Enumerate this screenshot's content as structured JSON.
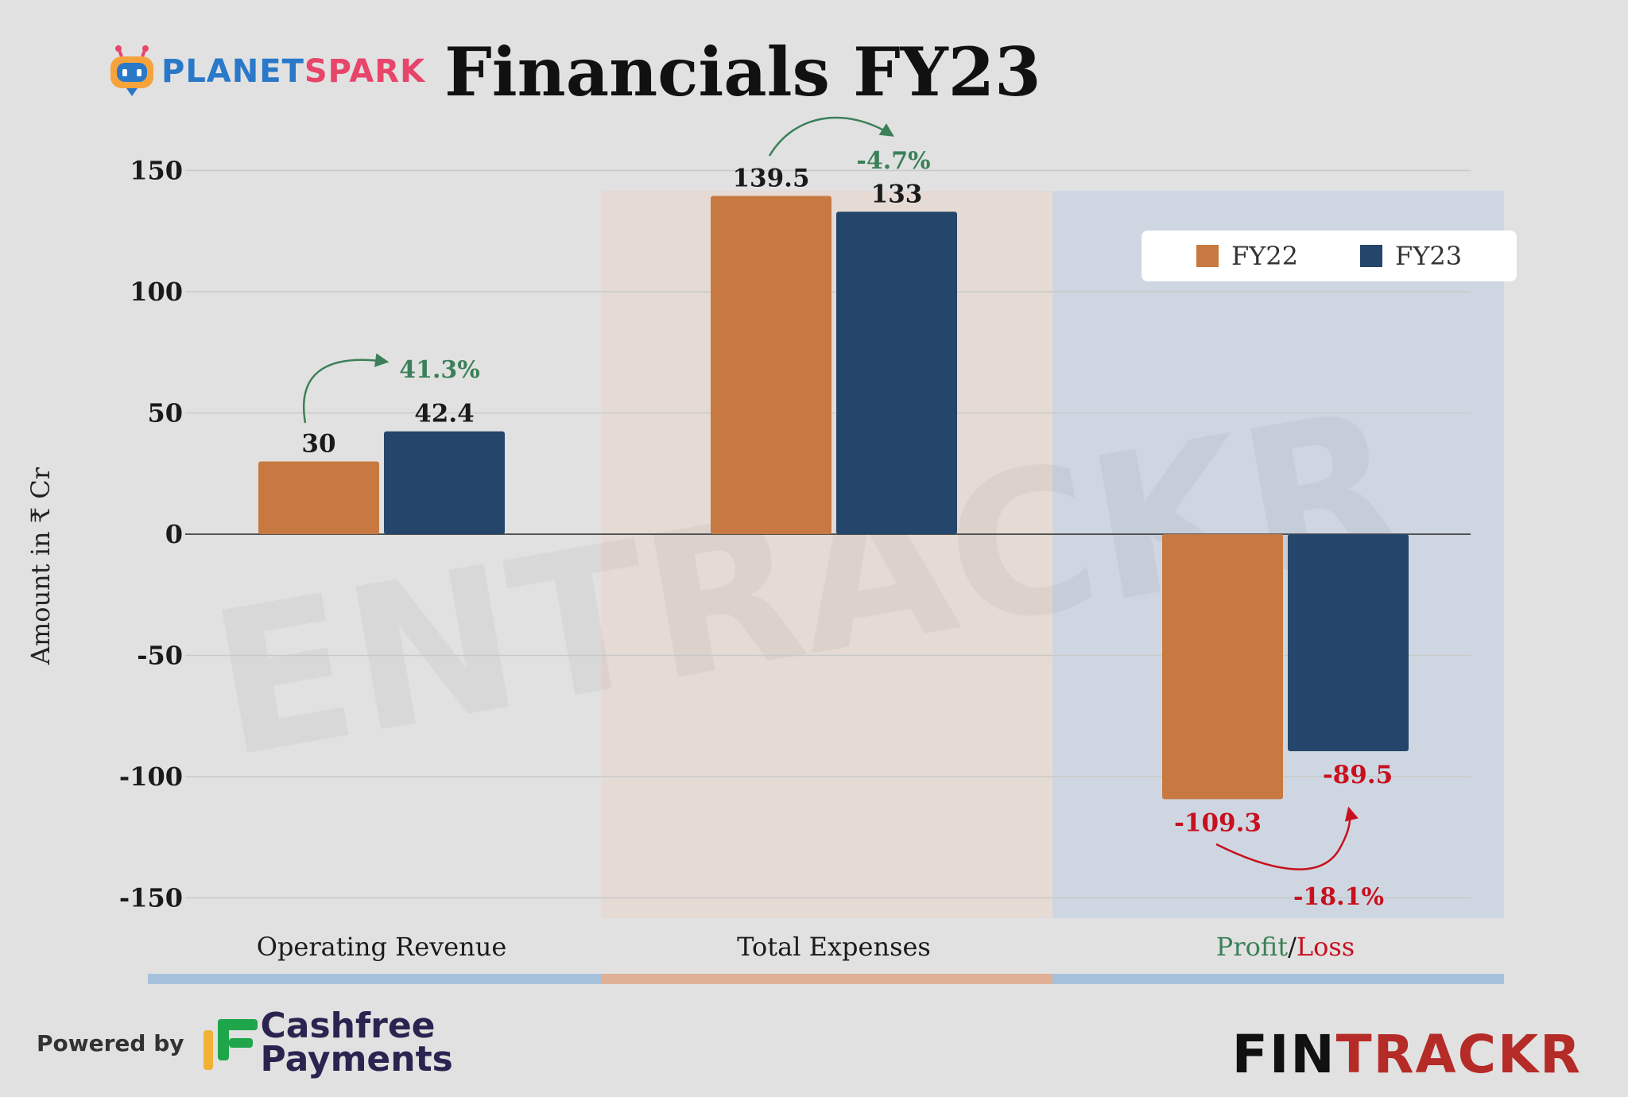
{
  "header": {
    "brand_part1": "PLANET",
    "brand_part2": "SPARK",
    "title": "Financials FY23"
  },
  "footer": {
    "powered_by": "Powered by",
    "sponsor_line1": "Cashfree",
    "sponsor_line2": "Payments",
    "publisher_part1": "FIN",
    "publisher_part2": "TRACKR"
  },
  "watermark": "ENTRACKR",
  "colors": {
    "fy22": "#c87941",
    "fy23": "#24466b",
    "positive": "#3b8059",
    "negative": "#c8101f",
    "revenue_band": "#a6c1dc",
    "expenses_band": "#dfb096",
    "profit_band": "#a6c1dc"
  },
  "chart_data": {
    "type": "bar",
    "ylabel": "Amount in ₹ Cr",
    "ylim": [
      -160,
      165
    ],
    "yticks": [
      150,
      100,
      50,
      0,
      -50,
      -100,
      -150
    ],
    "grid": true,
    "legend_position": "top-right",
    "categories": [
      "Operating Revenue",
      "Total Expenses",
      "Profit/Loss"
    ],
    "category_label_parts": {
      "profit": "Profit",
      "separator": "/",
      "loss": "Loss"
    },
    "series": [
      {
        "name": "FY22",
        "values": [
          30,
          139.5,
          -109.3
        ]
      },
      {
        "name": "FY23",
        "values": [
          42.4,
          133,
          -89.5
        ]
      }
    ],
    "value_labels": {
      "FY22": [
        "30",
        "139.5",
        "-109.3"
      ],
      "FY23": [
        "42.4",
        "133",
        "-89.5"
      ]
    },
    "changes": [
      "41.3%",
      "-4.7%",
      "-18.1%"
    ]
  }
}
